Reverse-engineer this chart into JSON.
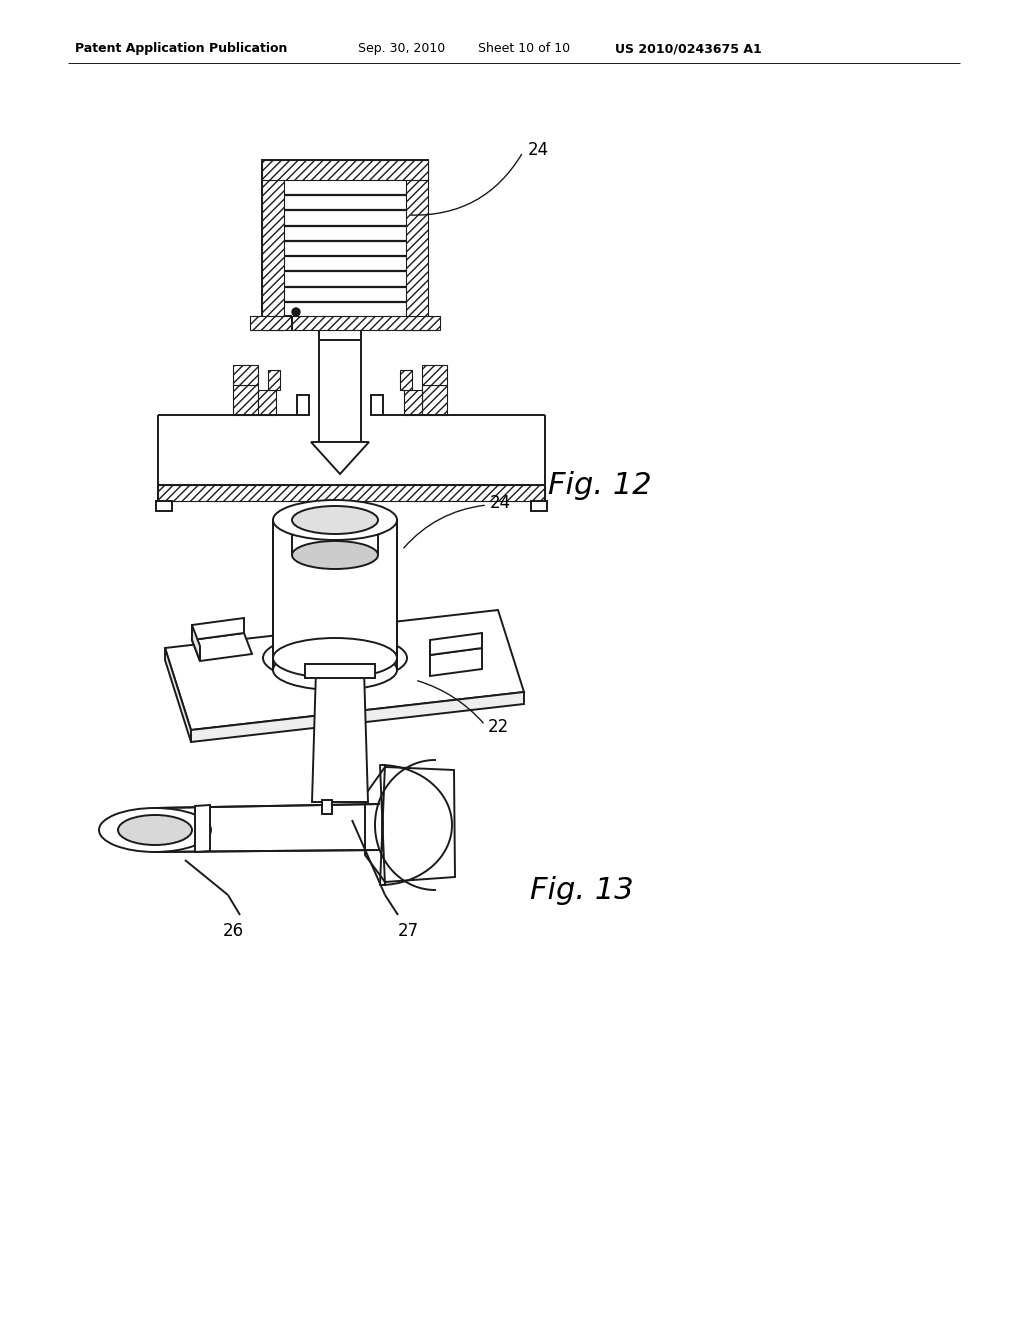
{
  "background_color": "#ffffff",
  "header_text": "Patent Application Publication",
  "header_date": "Sep. 30, 2010",
  "header_sheet": "Sheet 10 of 10",
  "header_patent": "US 2010/0243675 A1",
  "fig12_label": "Fig. 12",
  "fig13_label": "Fig. 13",
  "line_color": "#1a1a1a",
  "text_color": "#000000",
  "header_font_size": 9,
  "fig_label_font_size": 22,
  "annotation_font_size": 12
}
